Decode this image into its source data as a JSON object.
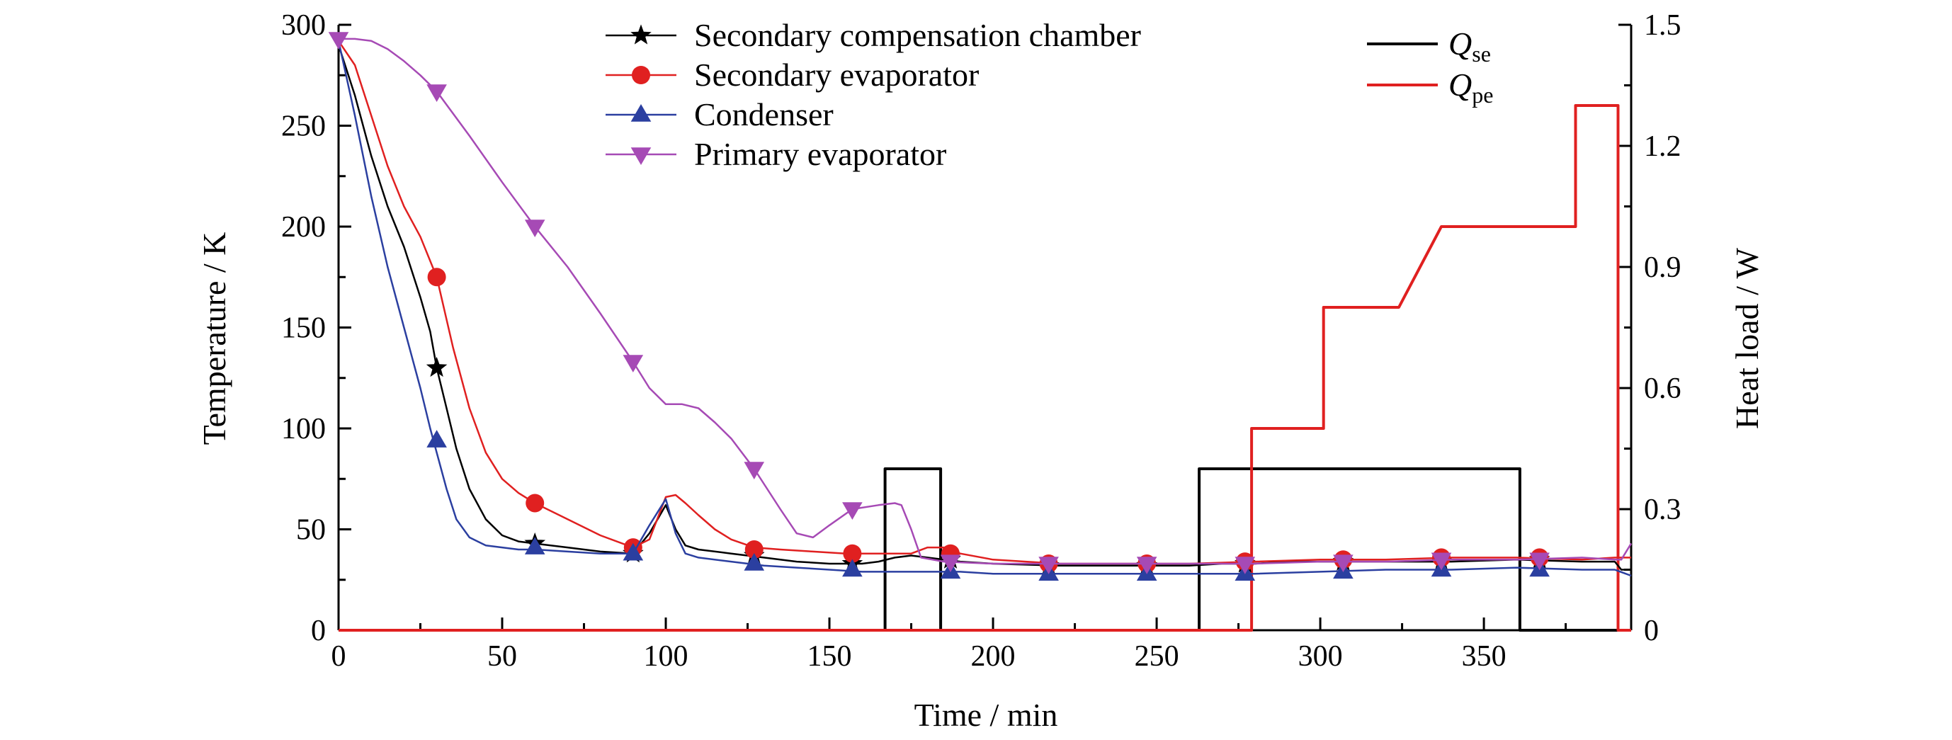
{
  "chart_data": {
    "type": "line",
    "xlabel": "Time / min",
    "ylabel_left": "Temperature / K",
    "ylabel_right": "Heat load / W",
    "xlim": [
      0,
      395
    ],
    "ylim_left": [
      0,
      300
    ],
    "ylim_right": [
      0,
      1.5
    ],
    "xticks": [
      0,
      50,
      100,
      150,
      200,
      250,
      300,
      350
    ],
    "yticks_left": [
      0,
      50,
      100,
      150,
      200,
      250,
      300
    ],
    "yticks_right": [
      0,
      0.3,
      0.6,
      0.9,
      1.2,
      1.5
    ],
    "grid": false,
    "legend_left": {
      "placement": "top-center",
      "entries": [
        {
          "name": "Secondary compensation chamber",
          "color": "#000000",
          "marker": "star"
        },
        {
          "name": "Secondary evaporator",
          "color": "#e02020",
          "marker": "circle"
        },
        {
          "name": "Condenser",
          "color": "#2b3fa0",
          "marker": "triangle-up"
        },
        {
          "name": "Primary evaporator",
          "color": "#a64ab5",
          "marker": "triangle-down"
        }
      ]
    },
    "legend_right": {
      "placement": "top-right",
      "entries": [
        {
          "symbol": "Q",
          "subscript": "se",
          "color": "#000000"
        },
        {
          "symbol": "Q",
          "subscript": "pe",
          "color": "#e02020"
        }
      ]
    },
    "series": [
      {
        "name": "Secondary compensation chamber",
        "axis": "left",
        "color": "#000000",
        "marker": "star",
        "x": [
          0,
          5,
          10,
          15,
          20,
          25,
          28,
          30,
          33,
          36,
          40,
          45,
          50,
          55,
          60,
          70,
          80,
          90,
          95,
          100,
          103,
          106,
          110,
          120,
          130,
          140,
          150,
          160,
          165,
          170,
          175,
          180,
          185,
          190,
          200,
          220,
          240,
          260,
          270,
          280,
          290,
          300,
          320,
          340,
          360,
          380,
          390,
          392,
          395
        ],
        "y": [
          290,
          265,
          235,
          210,
          190,
          165,
          148,
          130,
          110,
          90,
          70,
          55,
          47,
          44,
          43,
          41,
          39,
          38,
          48,
          62,
          50,
          42,
          40,
          38,
          36,
          34,
          33,
          33,
          34,
          36,
          37,
          36,
          35,
          34,
          33,
          32,
          32,
          32,
          33,
          33,
          34,
          34,
          34,
          34,
          35,
          34,
          34,
          30,
          30
        ],
        "marker_x": [
          30,
          60,
          90,
          127,
          157,
          187,
          217,
          247,
          277,
          307,
          337,
          367
        ],
        "marker_y": [
          130,
          43,
          38,
          37,
          33,
          35,
          32,
          32,
          33,
          34,
          34,
          35
        ]
      },
      {
        "name": "Secondary evaporator",
        "axis": "left",
        "color": "#e02020",
        "marker": "circle",
        "x": [
          0,
          5,
          10,
          15,
          20,
          25,
          30,
          35,
          40,
          45,
          50,
          55,
          60,
          70,
          80,
          90,
          95,
          100,
          103,
          106,
          110,
          115,
          120,
          127,
          135,
          145,
          155,
          165,
          170,
          175,
          180,
          185,
          190,
          200,
          220,
          240,
          260,
          280,
          300,
          320,
          340,
          360,
          380,
          390,
          395
        ],
        "y": [
          292,
          280,
          255,
          230,
          210,
          195,
          175,
          140,
          110,
          88,
          75,
          68,
          63,
          55,
          47,
          41,
          45,
          66,
          67,
          63,
          57,
          50,
          45,
          41,
          40,
          39,
          38,
          38,
          38,
          38,
          41,
          41,
          38,
          35,
          33,
          33,
          33,
          34,
          35,
          35,
          36,
          36,
          35,
          36,
          36
        ],
        "marker_x": [
          30,
          60,
          90,
          127,
          157,
          187,
          217,
          247,
          277,
          307,
          337,
          367
        ],
        "marker_y": [
          175,
          63,
          41,
          40,
          38,
          38,
          33,
          33,
          34,
          35,
          36,
          36
        ]
      },
      {
        "name": "Condenser",
        "axis": "left",
        "color": "#2b3fa0",
        "marker": "triangle-up",
        "x": [
          0,
          5,
          10,
          15,
          20,
          25,
          28,
          30,
          33,
          36,
          40,
          45,
          50,
          55,
          60,
          70,
          80,
          90,
          95,
          100,
          103,
          106,
          110,
          120,
          130,
          140,
          150,
          160,
          170,
          180,
          190,
          200,
          220,
          240,
          260,
          280,
          300,
          320,
          340,
          360,
          380,
          390,
          395
        ],
        "y": [
          292,
          255,
          215,
          180,
          150,
          120,
          100,
          88,
          70,
          55,
          46,
          42,
          41,
          40,
          40,
          39,
          38,
          38,
          52,
          65,
          48,
          38,
          36,
          34,
          32,
          31,
          30,
          29,
          29,
          29,
          29,
          28,
          28,
          28,
          28,
          28,
          29,
          30,
          30,
          31,
          30,
          30,
          27
        ],
        "marker_x": [
          30,
          60,
          90,
          127,
          157,
          187,
          217,
          247,
          277,
          307,
          337,
          367
        ],
        "marker_y": [
          94,
          41,
          38,
          33,
          30,
          29,
          28,
          28,
          28,
          29,
          30,
          30
        ]
      },
      {
        "name": "Primary evaporator",
        "axis": "left",
        "color": "#a64ab5",
        "marker": "triangle-down",
        "x": [
          0,
          5,
          10,
          15,
          20,
          25,
          30,
          40,
          50,
          60,
          70,
          80,
          90,
          95,
          100,
          105,
          110,
          115,
          120,
          127,
          135,
          140,
          145,
          150,
          157,
          165,
          170,
          172,
          175,
          178,
          185,
          200,
          220,
          240,
          260,
          280,
          300,
          320,
          340,
          360,
          380,
          390,
          392,
          395
        ],
        "y": [
          293,
          293,
          292,
          288,
          282,
          275,
          267,
          245,
          222,
          200,
          180,
          157,
          133,
          120,
          112,
          112,
          110,
          103,
          95,
          80,
          60,
          48,
          46,
          52,
          60,
          62,
          63,
          62,
          50,
          36,
          34,
          33,
          33,
          33,
          33,
          33,
          34,
          34,
          35,
          35,
          36,
          35,
          35,
          43
        ],
        "marker_x": [
          0,
          30,
          60,
          90,
          127,
          157,
          187,
          217,
          247,
          277,
          307,
          337,
          367
        ],
        "marker_y": [
          293,
          267,
          200,
          133,
          80,
          60,
          34,
          33,
          33,
          33,
          34,
          35,
          35
        ]
      },
      {
        "name": "Qse",
        "axis": "right",
        "color": "#000000",
        "marker": "none",
        "x": [
          0,
          167,
          167,
          184,
          184,
          263,
          263,
          361,
          361,
          395
        ],
        "y": [
          0,
          0,
          0.4,
          0.4,
          0,
          0,
          0.4,
          0.4,
          0,
          0
        ]
      },
      {
        "name": "Qpe",
        "axis": "right",
        "color": "#e02020",
        "marker": "none",
        "x": [
          0,
          279,
          279,
          301,
          301,
          324,
          324,
          337,
          337,
          378,
          378,
          391,
          391,
          395
        ],
        "y": [
          0,
          0,
          0.5,
          0.5,
          0.8,
          0.8,
          0.8,
          1.0,
          1.0,
          1.0,
          1.3,
          1.3,
          0,
          0
        ]
      }
    ]
  }
}
